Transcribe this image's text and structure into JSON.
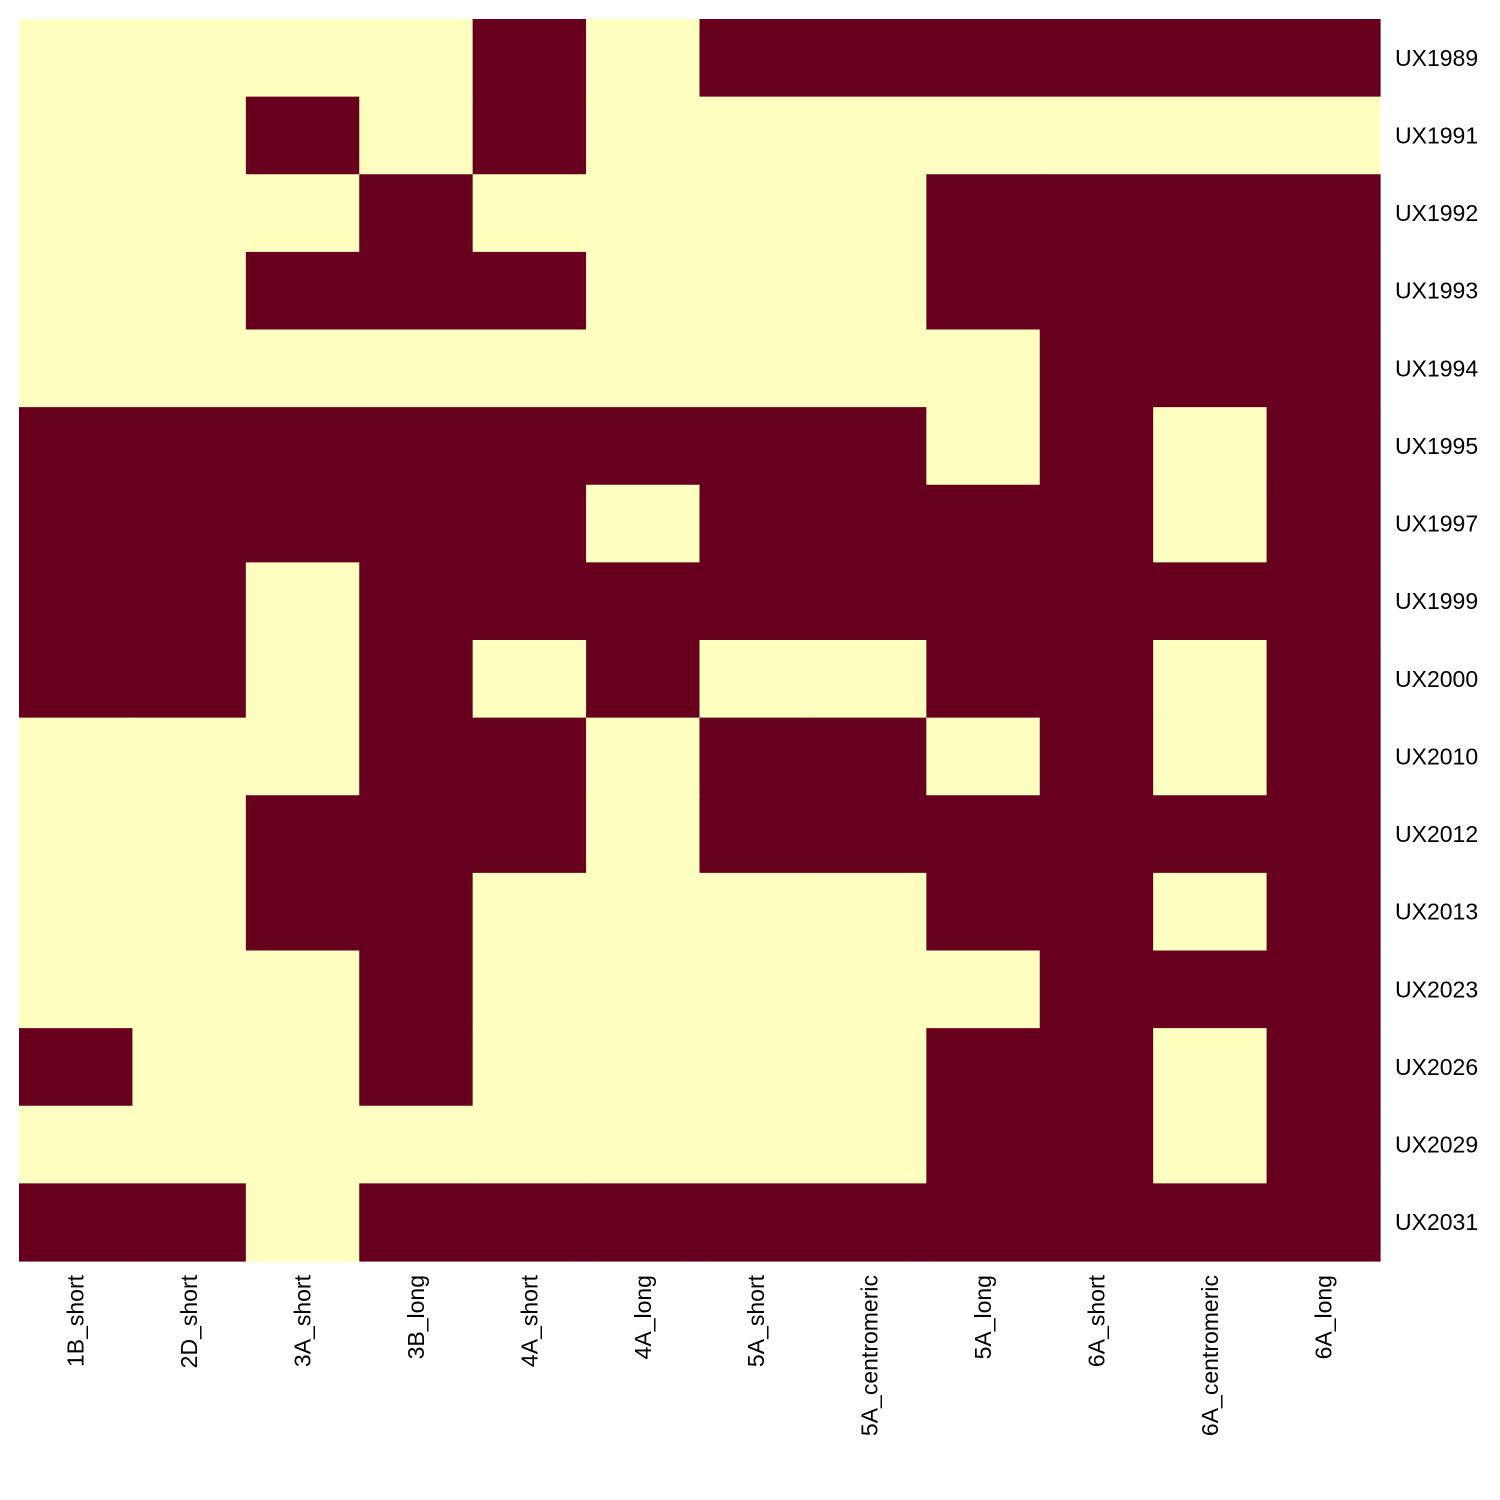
{
  "chart_data": {
    "type": "heatmap",
    "columns": [
      "1B_short",
      "2D_short",
      "3A_short",
      "3B_long",
      "4A_short",
      "4A_long",
      "5A_short",
      "5A_centromeric",
      "5A_long",
      "6A_short",
      "6A_centromeric",
      "6A_long"
    ],
    "rows": [
      "UX1989",
      "UX1991",
      "UX1992",
      "UX1993",
      "UX1994",
      "UX1995",
      "UX1997",
      "UX1999",
      "UX2000",
      "UX2010",
      "UX2012",
      "UX2013",
      "UX2023",
      "UX2026",
      "UX2029",
      "UX2031"
    ],
    "values": [
      [
        0,
        0,
        0,
        0,
        1,
        0,
        1,
        1,
        1,
        1,
        1,
        1
      ],
      [
        0,
        0,
        1,
        0,
        1,
        0,
        0,
        0,
        0,
        0,
        0,
        0
      ],
      [
        0,
        0,
        0,
        1,
        0,
        0,
        0,
        0,
        1,
        1,
        1,
        1
      ],
      [
        0,
        0,
        1,
        1,
        1,
        0,
        0,
        0,
        1,
        1,
        1,
        1
      ],
      [
        0,
        0,
        0,
        0,
        0,
        0,
        0,
        0,
        0,
        1,
        1,
        1
      ],
      [
        1,
        1,
        1,
        1,
        1,
        1,
        1,
        1,
        0,
        1,
        0,
        1
      ],
      [
        1,
        1,
        1,
        1,
        1,
        0,
        1,
        1,
        1,
        1,
        0,
        1
      ],
      [
        1,
        1,
        0,
        1,
        1,
        1,
        1,
        1,
        1,
        1,
        1,
        1
      ],
      [
        1,
        1,
        0,
        1,
        0,
        1,
        0,
        0,
        1,
        1,
        0,
        1
      ],
      [
        0,
        0,
        0,
        1,
        1,
        0,
        1,
        1,
        0,
        1,
        0,
        1
      ],
      [
        0,
        0,
        1,
        1,
        1,
        0,
        1,
        1,
        1,
        1,
        1,
        1
      ],
      [
        0,
        0,
        1,
        1,
        0,
        0,
        0,
        0,
        1,
        1,
        0,
        1
      ],
      [
        0,
        0,
        0,
        1,
        0,
        0,
        0,
        0,
        0,
        1,
        1,
        1
      ],
      [
        1,
        0,
        0,
        1,
        0,
        0,
        0,
        0,
        1,
        1,
        0,
        1
      ],
      [
        0,
        0,
        0,
        0,
        0,
        0,
        0,
        0,
        1,
        1,
        0,
        1
      ],
      [
        1,
        1,
        0,
        1,
        1,
        1,
        1,
        1,
        1,
        1,
        1,
        1
      ]
    ],
    "colors": {
      "0": "#ffffbf",
      "1": "#67001f"
    },
    "legend": "none",
    "grid": false
  }
}
